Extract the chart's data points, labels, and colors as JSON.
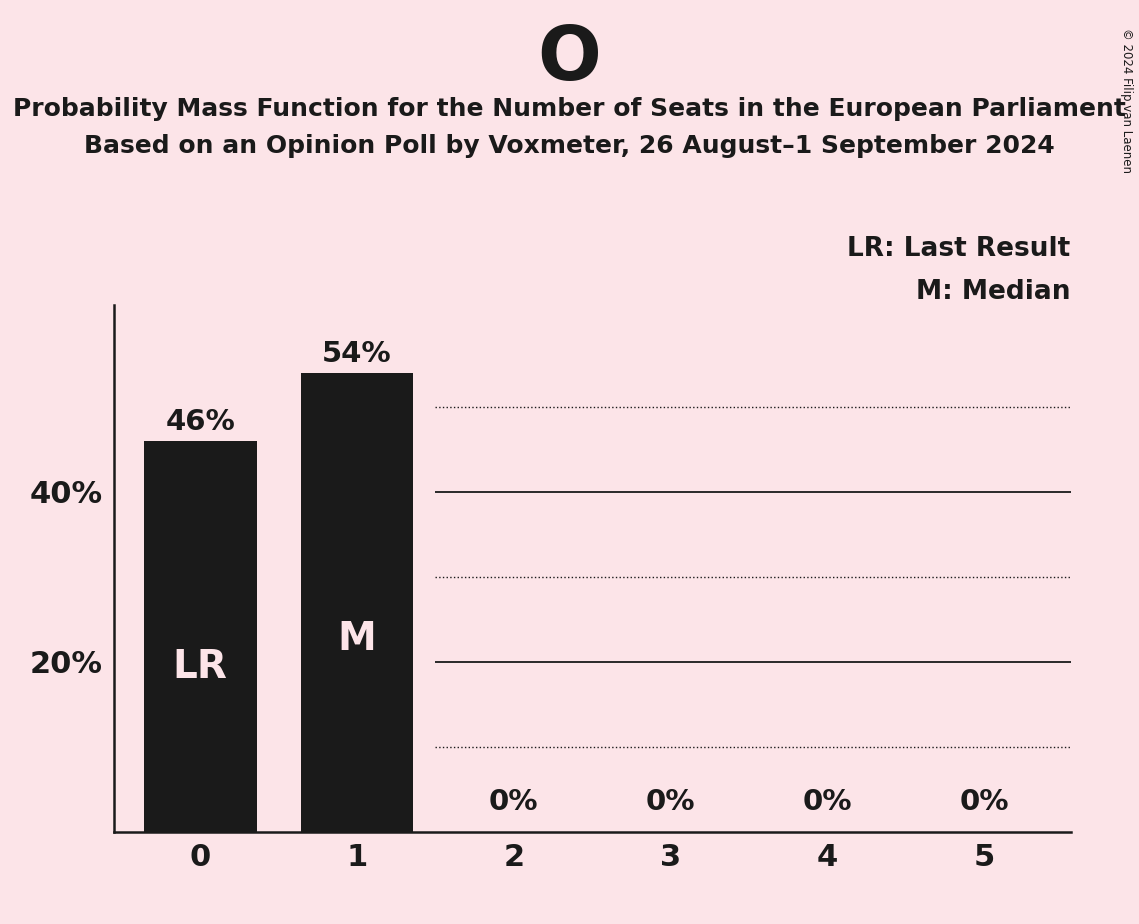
{
  "title_letter": "O",
  "subtitle_line1": "Probability Mass Function for the Number of Seats in the European Parliament",
  "subtitle_line2": "Based on an Opinion Poll by Voxmeter, 26 August–1 September 2024",
  "copyright": "© 2024 Filip van Laenen",
  "categories": [
    0,
    1,
    2,
    3,
    4,
    5
  ],
  "values": [
    0.46,
    0.54,
    0.0,
    0.0,
    0.0,
    0.0
  ],
  "bar_color": "#1a1a1a",
  "background_color": "#fce4e8",
  "bar_labels": [
    "46%",
    "54%",
    "0%",
    "0%",
    "0%",
    "0%"
  ],
  "bar_inner_labels": [
    "LR",
    "M",
    "",
    "",
    "",
    ""
  ],
  "legend_lr": "LR: Last Result",
  "legend_m": "M: Median",
  "ylabel_ticks": [
    0.2,
    0.4
  ],
  "ylabel_labels": [
    "20%",
    "40%"
  ],
  "ylim": [
    0,
    0.62
  ],
  "xlim": [
    -0.55,
    5.55
  ],
  "solid_lines": [
    0.2,
    0.4
  ],
  "dotted_lines": [
    0.1,
    0.3,
    0.5
  ],
  "grid_xstart": 1.5,
  "title_fontsize": 54,
  "subtitle_fontsize": 18,
  "bar_label_fontsize": 21,
  "inner_label_fontsize": 28,
  "legend_fontsize": 19,
  "axis_tick_fontsize": 22,
  "ylabel_fontsize": 22
}
